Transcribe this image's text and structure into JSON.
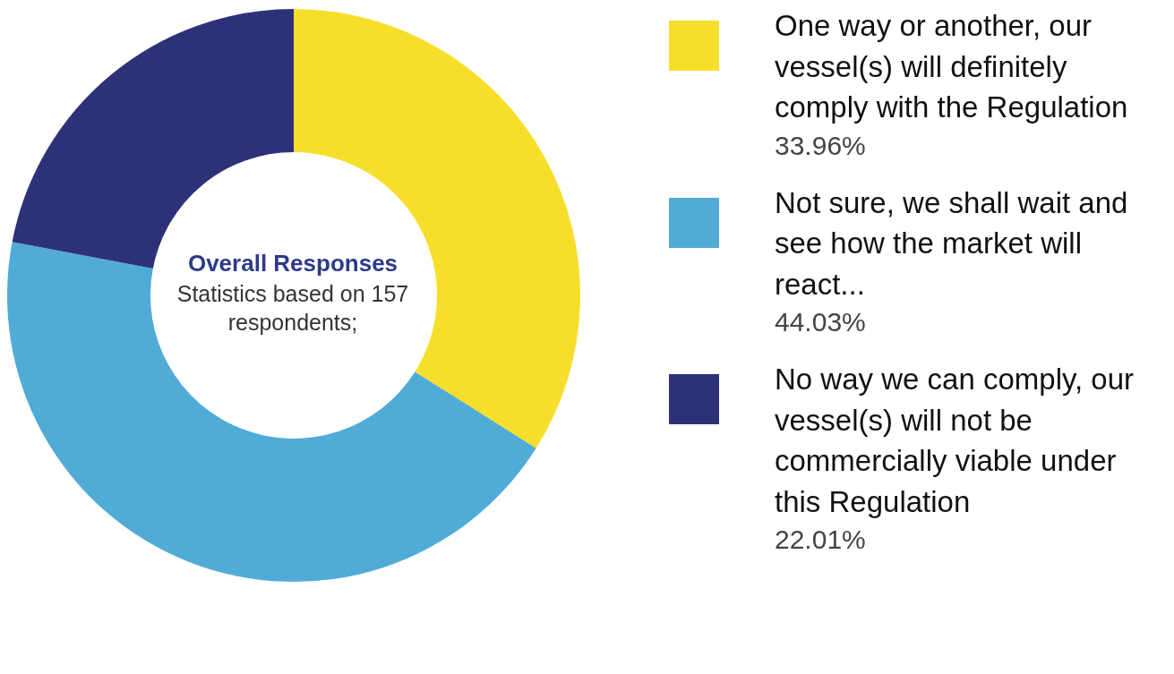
{
  "chart_data": {
    "type": "donut",
    "title": "Overall Responses",
    "annotations": [
      "Statistics based on 157 respondents;"
    ],
    "categories": [
      "One way or another, our vessel(s) will definitely comply with the Regulation",
      "Not sure, we shall wait and see how the market will react...",
      "No way we can comply, our vessel(s) will not be commercially viable under this Regulation"
    ],
    "values": [
      33.96,
      44.03,
      22.01
    ],
    "value_labels": [
      "33.96%",
      "44.03%",
      "22.01%"
    ],
    "colors": [
      "#f6df2a",
      "#50acd6",
      "#2d3278"
    ],
    "legend": "right"
  }
}
